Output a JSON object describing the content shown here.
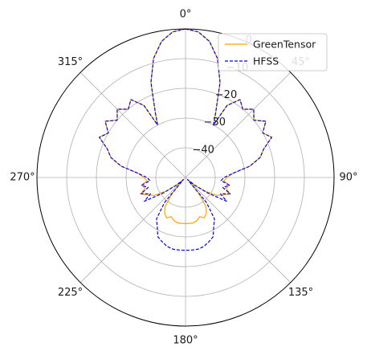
{
  "chart_data": {
    "type": "polar-line",
    "theta_zero": "top",
    "theta_direction": "clockwise",
    "r_min": -50,
    "r_max": 0,
    "r_ticks": [
      -40,
      -30,
      -20,
      -10,
      0
    ],
    "r_tick_labels": [
      "−40",
      "−30",
      "−20",
      "−10",
      "0"
    ],
    "theta_ticks": [
      0,
      45,
      90,
      135,
      180,
      225,
      270,
      315
    ],
    "theta_tick_labels": [
      "0°",
      "45°",
      "90°",
      "135°",
      "180°",
      "225°",
      "270°",
      "315°"
    ],
    "grid": true,
    "legend": "top-right",
    "series": [
      {
        "name": "GreenTensor",
        "color": "#ffa500",
        "dash": "solid",
        "theta": [
          0,
          5,
          10,
          15,
          20,
          25,
          28,
          30,
          35,
          40,
          45,
          50,
          55,
          60,
          65,
          70,
          75,
          80,
          85,
          90,
          95,
          100,
          105,
          110,
          115,
          120,
          125,
          130,
          135,
          140,
          145,
          150,
          155,
          160,
          165,
          170,
          175,
          180,
          185,
          190,
          195,
          200,
          205,
          210,
          215,
          220,
          225,
          230,
          235,
          240,
          245,
          250,
          255,
          260,
          265,
          270,
          275,
          280,
          285,
          290,
          295,
          300,
          305,
          310,
          315,
          320,
          325,
          330,
          332,
          335,
          340,
          345,
          350,
          355
        ],
        "r": [
          0,
          -0.8,
          -3.5,
          -8.5,
          -16,
          -26,
          -30,
          -22,
          -18,
          -20,
          -17.5,
          -20,
          -17,
          -20,
          -18,
          -22,
          -24,
          -28,
          -34,
          -36,
          -37,
          -35,
          -36,
          -34,
          -36,
          -38,
          -42,
          -46,
          -49,
          -43,
          -38,
          -36,
          -35,
          -36,
          -35,
          -34.5,
          -34.5,
          -34.5,
          -34.5,
          -34.5,
          -35,
          -36,
          -35,
          -36,
          -38,
          -43,
          -49,
          -46,
          -42,
          -38,
          -36,
          -34,
          -36,
          -35,
          -37,
          -36,
          -34,
          -28,
          -24,
          -22,
          -18,
          -20,
          -17,
          -20,
          -17.5,
          -20,
          -18,
          -22,
          -30,
          -26,
          -16,
          -8.5,
          -3.5,
          -0.8
        ]
      },
      {
        "name": "HFSS",
        "color": "#0000ee",
        "dash": "dashed",
        "theta": [
          0,
          5,
          10,
          15,
          20,
          25,
          28,
          30,
          35,
          40,
          45,
          50,
          55,
          60,
          65,
          70,
          75,
          80,
          85,
          90,
          95,
          100,
          105,
          110,
          115,
          120,
          125,
          130,
          135,
          140,
          145,
          150,
          155,
          160,
          165,
          170,
          175,
          180,
          185,
          190,
          195,
          200,
          205,
          210,
          215,
          220,
          225,
          230,
          235,
          240,
          245,
          250,
          255,
          260,
          265,
          270,
          275,
          280,
          285,
          290,
          295,
          300,
          305,
          310,
          315,
          320,
          325,
          330,
          332,
          335,
          340,
          345,
          350,
          355
        ],
        "r": [
          0,
          -0.8,
          -3.5,
          -8.5,
          -16,
          -26,
          -30,
          -22,
          -18,
          -20,
          -17.5,
          -20,
          -17,
          -20,
          -18,
          -22,
          -24,
          -28,
          -34,
          -37,
          -38,
          -35,
          -37,
          -34,
          -37,
          -34,
          -41,
          -46,
          -49,
          -39,
          -33,
          -31,
          -28,
          -27,
          -26,
          -25.5,
          -25.5,
          -25.5,
          -25.5,
          -25.5,
          -26,
          -27,
          -28,
          -31,
          -33,
          -39,
          -49,
          -46,
          -41,
          -34,
          -37,
          -34,
          -37,
          -35,
          -38,
          -37,
          -34,
          -28,
          -24,
          -22,
          -18,
          -20,
          -17,
          -20,
          -17.5,
          -20,
          -18,
          -22,
          -30,
          -26,
          -16,
          -8.5,
          -3.5,
          -0.8
        ]
      }
    ]
  }
}
